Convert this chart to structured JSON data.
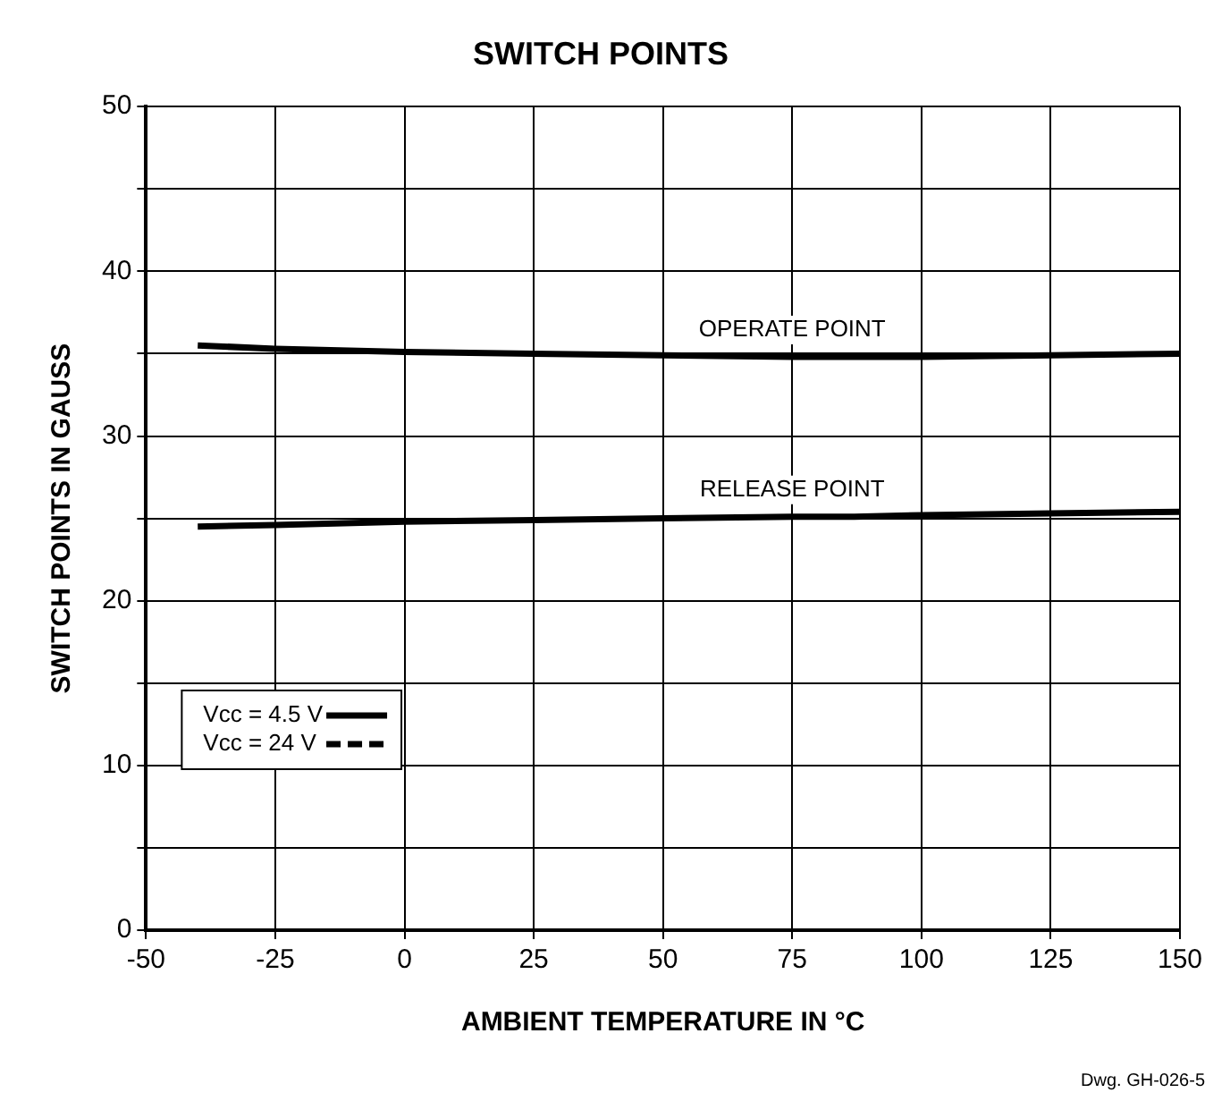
{
  "chart_data": {
    "type": "line",
    "title": "SWITCH POINTS",
    "xlabel": "AMBIENT TEMPERATURE IN °C",
    "ylabel": "SWITCH POINTS IN GAUSS",
    "x": [
      -40,
      -25,
      0,
      25,
      50,
      75,
      87,
      100,
      125,
      150
    ],
    "series": [
      {
        "name": "Vcc = 4.5 V",
        "color": "#000000",
        "line_style": "solid",
        "values": [
          35.5,
          35.3,
          35.1,
          35.0,
          34.9,
          34.8,
          34.8,
          34.8,
          34.9,
          35.0
        ]
      },
      {
        "color": "#000000",
        "line_style": "solid",
        "values": [
          24.5,
          24.6,
          24.8,
          24.9,
          25.0,
          25.1,
          25.1,
          25.2,
          25.3,
          25.4
        ]
      },
      {
        "name": "Vcc = 24 V",
        "color": "#000000",
        "line_style": "dashed",
        "values": [
          null,
          null,
          null,
          null,
          null,
          null,
          null,
          null,
          null,
          null
        ]
      }
    ],
    "xlim": [
      -50,
      150
    ],
    "xticks": [
      -50,
      -25,
      0,
      25,
      50,
      75,
      100,
      125,
      150
    ],
    "ylim": [
      0,
      50
    ],
    "yticks": [
      0,
      {
        "value": 5,
        "label": null
      },
      10,
      {
        "value": 15,
        "label": null
      },
      20,
      {
        "value": 25,
        "label": null
      },
      30,
      {
        "value": 35,
        "label": null
      },
      40,
      {
        "value": 45,
        "label": null
      },
      50
    ],
    "grid": true,
    "legend": "bottom left",
    "marker": "none",
    "annotations": [
      {
        "text": "OPERATE POINT",
        "x": 75,
        "y": 34.8
      },
      {
        "text": "RELEASE POINT",
        "x": 75,
        "y": 25.1
      },
      "Dwg. GH-026-5"
    ]
  }
}
